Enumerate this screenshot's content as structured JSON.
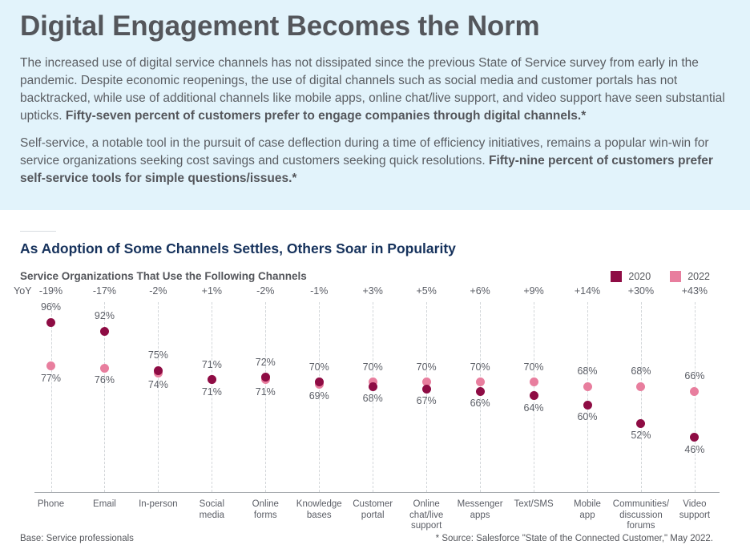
{
  "hero": {
    "title": "Digital Engagement Becomes the Norm",
    "p1_regular": "The increased use of digital service channels has not dissipated since the previous State of Service survey from early in the pandemic. Despite economic reopenings, the use of digital channels such as social media and customer portals has not backtracked, while use of additional channels like mobile apps, online chat/live support, and video support have seen substantial upticks. ",
    "p1_bold": "Fifty-seven percent of customers prefer to engage companies through digital channels.*",
    "p2_regular": "Self-service, a notable tool in the pursuit of case deflection during a time of efficiency initiatives, remains a popular win-win for service organizations seeking cost savings and customers seeking quick resolutions. ",
    "p2_bold": "Fifty-nine percent of customers prefer self-service tools for simple questions/issues.*"
  },
  "section": {
    "heading": "As Adoption of Some Channels Settles, Others Soar in Popularity",
    "base_note": "Base: Service professionals",
    "source_note": "* Source: Salesforce \"State of the Connected Customer,\" May 2022."
  },
  "chart_data": {
    "type": "scatter",
    "title": "Service Organizations That Use the Following Channels",
    "yoy_axis_label": "YoY",
    "legend_position": "top-right",
    "grid": "vertical dashed line per category",
    "value_suffix": "%",
    "ylim": [
      22,
      100
    ],
    "categories": [
      "Phone",
      "Email",
      "In-person",
      "Social\nmedia",
      "Online\nforms",
      "Knowledge\nbases",
      "Customer\nportal",
      "Online\nchat/live\nsupport",
      "Messenger\napps",
      "Text/SMS",
      "Mobile\napp",
      "Communities/\ndiscussion\nforums",
      "Video\nsupport"
    ],
    "yoy": [
      "-19%",
      "-17%",
      "-2%",
      "+1%",
      "-2%",
      "-1%",
      "+3%",
      "+5%",
      "+6%",
      "+9%",
      "+14%",
      "+30%",
      "+43%"
    ],
    "series": [
      {
        "name": "2020",
        "color": "#8E0C44",
        "values": [
          96,
          92,
          75,
          71,
          72,
          70,
          68,
          67,
          66,
          64,
          60,
          52,
          46
        ]
      },
      {
        "name": "2022",
        "color": "#E87E9E",
        "values": [
          77,
          76,
          74,
          71,
          71,
          69,
          70,
          70,
          70,
          70,
          68,
          68,
          66
        ]
      }
    ],
    "colors": {
      "heading": "#16325C",
      "hero_background": "#E2F3FB",
      "label_gray": "#5B5E66"
    }
  }
}
